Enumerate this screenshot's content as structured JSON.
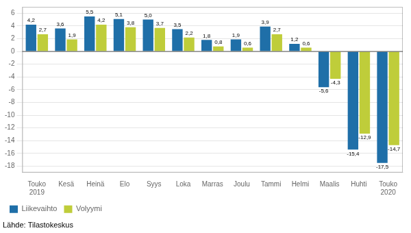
{
  "chart_data": {
    "type": "bar",
    "categories": [
      "Touko\n2019",
      "Kesä",
      "Heinä",
      "Elo",
      "Syys",
      "Loka",
      "Marras",
      "Joulu",
      "Tammi",
      "Helmi",
      "Maalis",
      "Huhti",
      "Touko\n2020"
    ],
    "series": [
      {
        "name": "Liikevaihto",
        "color": "#1F6FA8",
        "values": [
          4.2,
          3.6,
          5.5,
          5.1,
          5.0,
          3.5,
          1.8,
          1.9,
          3.9,
          1.2,
          -5.6,
          -15.4,
          -17.5
        ],
        "value_labels": [
          "4,2",
          "3,6",
          "5,5",
          "5,1",
          "5,0",
          "3,5",
          "1,8",
          "1,9",
          "3,9",
          "1,2",
          "-5,6",
          "-15,4",
          "-17,5"
        ]
      },
      {
        "name": "Volyymi",
        "color": "#BFCD3A",
        "values": [
          2.7,
          1.9,
          4.2,
          3.8,
          3.7,
          2.2,
          0.8,
          0.6,
          2.7,
          0.6,
          -4.3,
          -12.9,
          -14.7
        ],
        "value_labels": [
          "2,7",
          "1,9",
          "4,2",
          "3,8",
          "3,7",
          "2,2",
          "0,8",
          "0,6",
          "2,7",
          "0,6",
          "-4,3",
          "-12,9",
          "-14,7"
        ]
      }
    ],
    "ylim": [
      -19,
      7
    ],
    "yticks": [
      -18,
      -16,
      -14,
      -12,
      -10,
      -8,
      -6,
      -4,
      -2,
      0,
      2,
      4,
      6
    ],
    "grid": true,
    "legend": "lower left",
    "data_labels": true,
    "footnote": "Lähde: Tilastokeskus"
  }
}
